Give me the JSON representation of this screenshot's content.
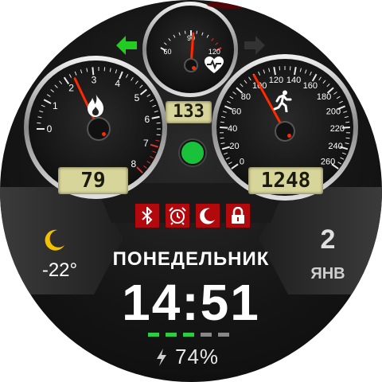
{
  "gauges": {
    "left": {
      "ticks": [
        "0",
        "1",
        "2",
        "3",
        "4",
        "5",
        "6",
        "7",
        "8"
      ],
      "value": 2.3,
      "icon": "flame-icon",
      "lcd_value": "79"
    },
    "top": {
      "ticks": [
        "60",
        "90",
        "120"
      ],
      "value": 92,
      "icon": "heart-pulse-icon",
      "lcd_value": "133"
    },
    "right": {
      "ticks": [
        "0",
        "20",
        "40",
        "60",
        "80",
        "100",
        "120",
        "140",
        "160",
        "180",
        "200",
        "220",
        "240",
        "260"
      ],
      "value": 100,
      "icon": "runner-icon",
      "lcd_value": "1248"
    }
  },
  "status_icons": [
    "bluetooth-icon",
    "alarm-icon",
    "moon-icon",
    "lock-icon"
  ],
  "indicator": {
    "color": "#19c23a"
  },
  "arrows": {
    "left_color": "#22cc22",
    "right_color": "#333333"
  },
  "weather": {
    "icon": "moon-icon",
    "temperature": "-22°"
  },
  "date": {
    "day": "2",
    "month": "ЯНВ"
  },
  "weekday": "ПОНЕДЕЛЬНИК",
  "time": "14:51",
  "battery": {
    "icon": "lightning-icon",
    "percent_text": "74%",
    "level": 0.6,
    "segments": [
      "#2ecc40",
      "#2ecc40",
      "#2ecc40",
      "#888888",
      "#888888"
    ]
  }
}
